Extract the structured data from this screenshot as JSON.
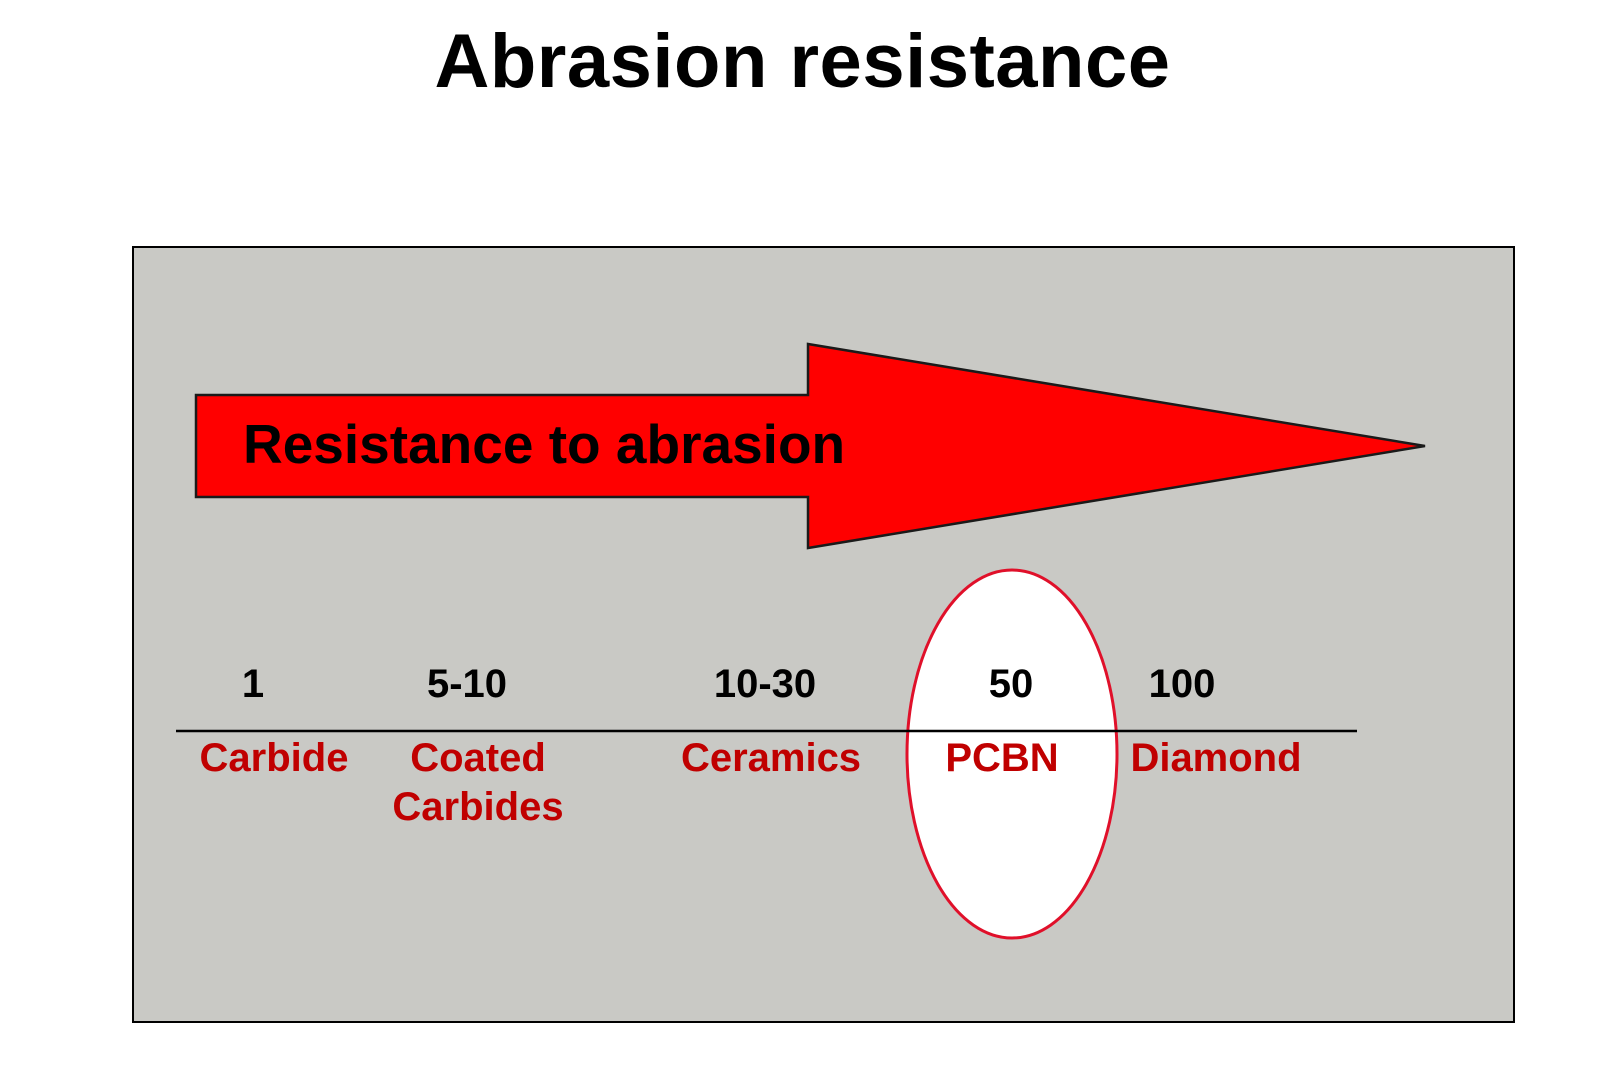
{
  "title": "Abrasion resistance",
  "arrow": {
    "label": "Resistance to abrasion",
    "color": "#ff0000"
  },
  "panel_background": "#c9c9c5",
  "highlight": {
    "material": "PCBN",
    "outline_color": "#e0102a",
    "fill": "#ffffff"
  },
  "scale": [
    {
      "value": "1",
      "material_lines": [
        "Carbide"
      ]
    },
    {
      "value": "5-10",
      "material_lines": [
        "Coated",
        "Carbides"
      ]
    },
    {
      "value": "10-30",
      "material_lines": [
        "Ceramics"
      ]
    },
    {
      "value": "50",
      "material_lines": [
        "PCBN"
      ]
    },
    {
      "value": "100",
      "material_lines": [
        "Diamond"
      ]
    }
  ],
  "colors": {
    "material_text": "#c00000",
    "value_text": "#000000"
  }
}
